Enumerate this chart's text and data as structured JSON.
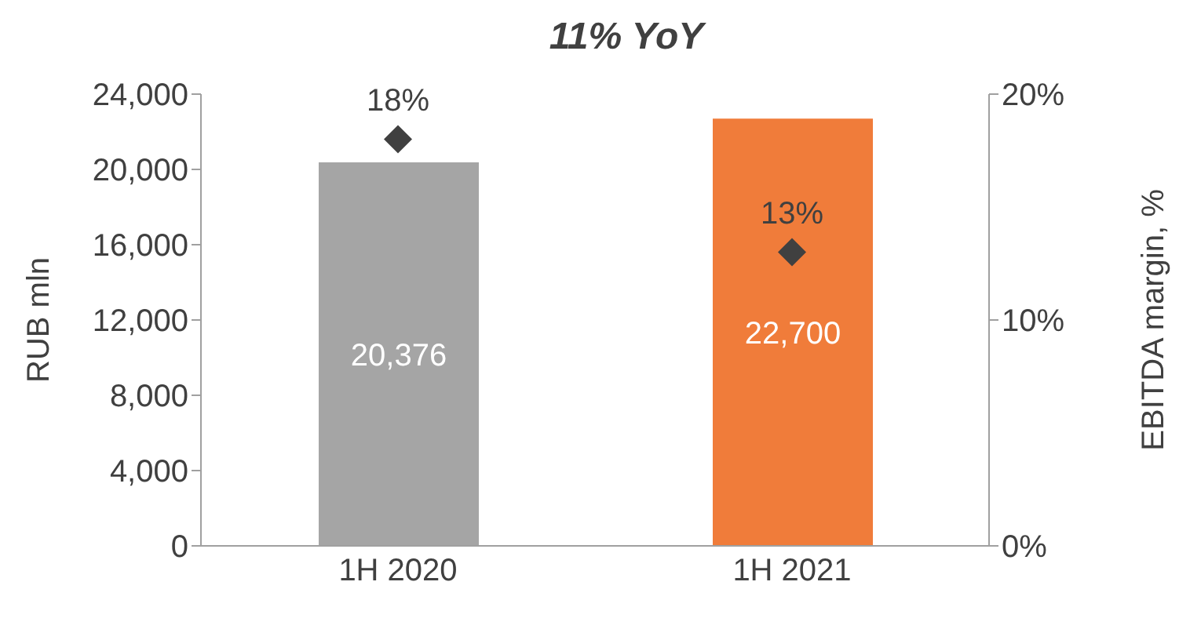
{
  "chart_data": {
    "type": "bar",
    "title": "11% YoY",
    "ylabel": "RUB mln",
    "y2label": "EBITDA margin, %",
    "categories": [
      "1H 2020",
      "1H 2021"
    ],
    "series": [
      {
        "colors": [
          "#a5a5a5",
          "#f07c3a"
        ],
        "values": [
          20376,
          22700
        ],
        "value_labels": [
          "20,376",
          "22,700"
        ]
      },
      {
        "type": "scatter",
        "axis": "y2",
        "color": "#404040",
        "marker": "diamond",
        "values": [
          18,
          13
        ],
        "value_labels": [
          "18%",
          "13%"
        ]
      }
    ],
    "ylim": [
      0,
      24000
    ],
    "yticks": [
      {
        "value": 0,
        "label": "0"
      },
      {
        "value": 4000,
        "label": "4,000"
      },
      {
        "value": 8000,
        "label": "8,000"
      },
      {
        "value": 12000,
        "label": "12,000"
      },
      {
        "value": 16000,
        "label": "16,000"
      },
      {
        "value": 20000,
        "label": "20,000"
      },
      {
        "value": 24000,
        "label": "24,000"
      }
    ],
    "y2lim": [
      0,
      20
    ],
    "y2ticks": [
      {
        "value": 0,
        "label": "0%"
      },
      {
        "value": 10,
        "label": "10%"
      },
      {
        "value": 20,
        "label": "20%"
      }
    ],
    "grid": false,
    "legend": false
  }
}
